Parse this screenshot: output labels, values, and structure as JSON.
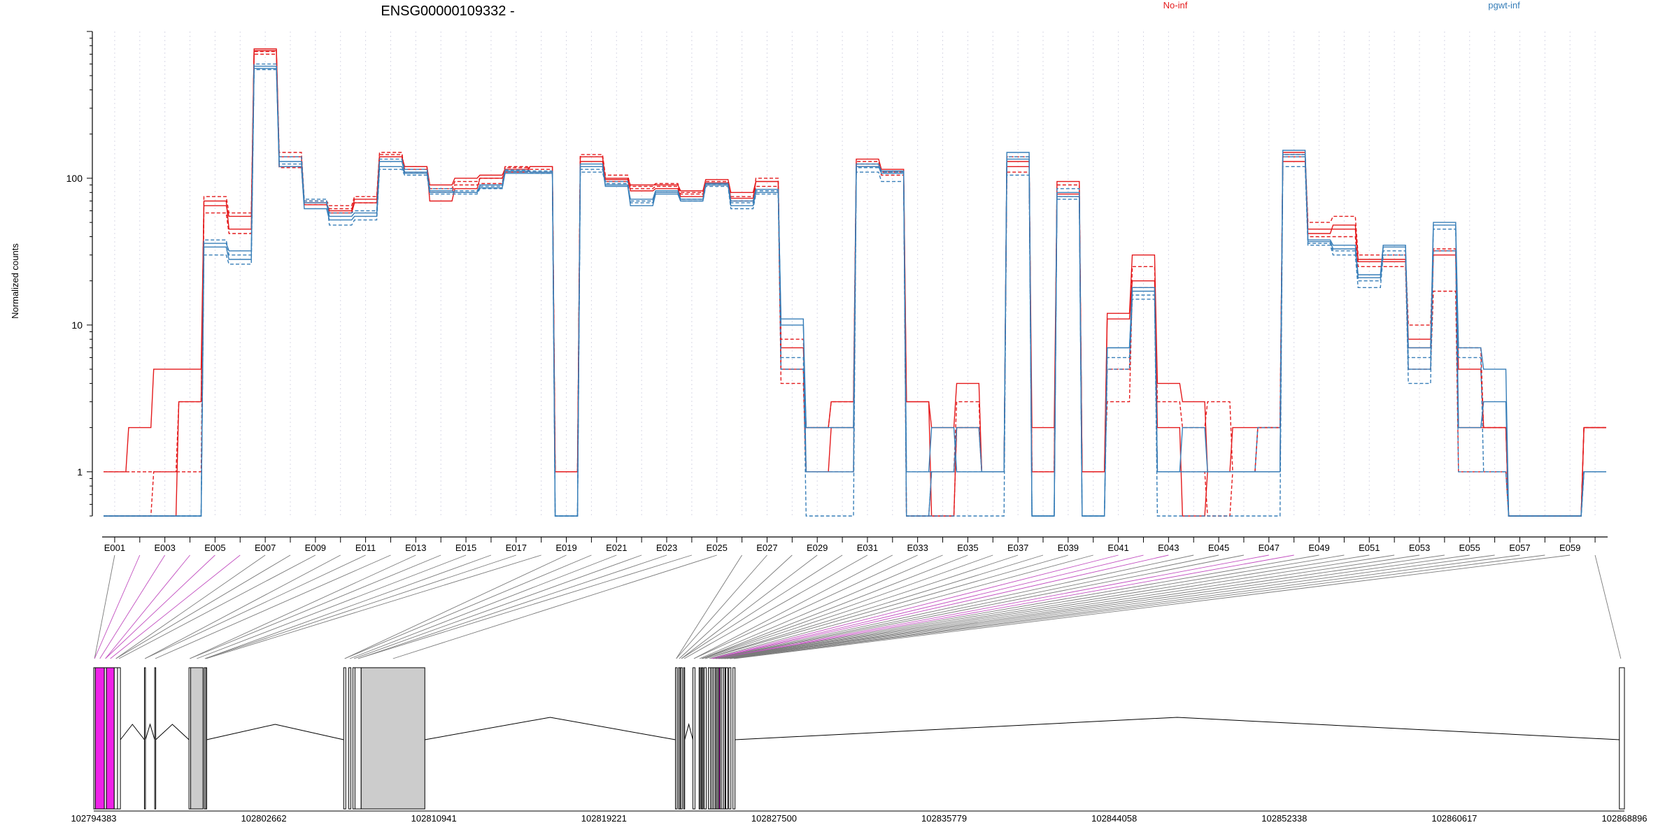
{
  "chart_data": {
    "type": "line",
    "title": "ENSG00000109332 -",
    "ylabel": "Normalized counts",
    "yscale": "log",
    "ylim": [
      0.5,
      1000
    ],
    "yticks": [
      1,
      10,
      100
    ],
    "ytick_labels": [
      "1",
      "10",
      "100"
    ],
    "categories": [
      "E001",
      "E002",
      "E003",
      "E004",
      "E005",
      "E006",
      "E007",
      "E008",
      "E009",
      "E010",
      "E011",
      "E012",
      "E013",
      "E014",
      "E015",
      "E016",
      "E017",
      "E018",
      "E019",
      "E020",
      "E021",
      "E022",
      "E023",
      "E024",
      "E025",
      "E026",
      "E027",
      "E028",
      "E029",
      "E030",
      "E031",
      "E032",
      "E033",
      "E034",
      "E035",
      "E036",
      "E037",
      "E038",
      "E039",
      "E040",
      "E041",
      "E042",
      "E043",
      "E044",
      "E045",
      "E046",
      "E047",
      "E048",
      "E049",
      "E050",
      "E051",
      "E052",
      "E053",
      "E054",
      "E055",
      "E056",
      "E057",
      "E058",
      "E059",
      "E060"
    ],
    "category_labels": [
      "E001",
      "",
      "E003",
      "",
      "E005",
      "",
      "E007",
      "",
      "E009",
      "",
      "E011",
      "",
      "E013",
      "",
      "E015",
      "",
      "E017",
      "",
      "E019",
      "",
      "E021",
      "",
      "E023",
      "",
      "E025",
      "",
      "E027",
      "",
      "E029",
      "",
      "E031",
      "",
      "E033",
      "",
      "E035",
      "",
      "E037",
      "",
      "E039",
      "",
      "E041",
      "",
      "E043",
      "",
      "E045",
      "",
      "E047",
      "",
      "E049",
      "",
      "E051",
      "",
      "E053",
      "",
      "E055",
      "",
      "E057",
      "",
      "E059",
      ""
    ],
    "legend": [
      {
        "name": "No-inf",
        "color": "#e41a1c"
      },
      {
        "name": "pgwt-inf",
        "color": "#377eb8"
      }
    ],
    "series": [
      {
        "group": "No-inf",
        "color": "#e41a1c",
        "values": [
          1,
          1,
          1,
          1,
          58,
          42,
          730,
          118,
          66,
          62,
          68,
          145,
          115,
          80,
          90,
          92,
          118,
          110,
          1,
          140,
          95,
          85,
          88,
          78,
          90,
          75,
          88,
          4,
          1,
          1,
          130,
          110,
          0.5,
          0.5,
          2,
          1,
          110,
          1,
          75,
          1,
          3,
          18,
          1,
          1,
          0.5,
          1,
          2,
          140,
          40,
          40,
          25,
          25,
          5,
          17,
          1,
          1,
          0.5,
          0.5,
          0.5,
          2
        ]
      },
      {
        "group": "No-inf",
        "color": "#e41a1c",
        "values": [
          1,
          2,
          5,
          5,
          65,
          55,
          760,
          140,
          68,
          60,
          72,
          140,
          120,
          90,
          100,
          105,
          115,
          120,
          1,
          130,
          100,
          90,
          90,
          82,
          98,
          80,
          95,
          7,
          2,
          3,
          135,
          115,
          3,
          2,
          4,
          1,
          130,
          1,
          95,
          1,
          12,
          30,
          4,
          3,
          1,
          1,
          1,
          150,
          45,
          45,
          28,
          28,
          8,
          32,
          5,
          2,
          0.5,
          0.5,
          0.5,
          2
        ]
      },
      {
        "group": "No-inf",
        "color": "#e41a1c",
        "values": [
          0.5,
          0.5,
          1,
          3,
          75,
          58,
          700,
          150,
          70,
          65,
          75,
          150,
          110,
          85,
          95,
          100,
          120,
          115,
          1,
          145,
          105,
          88,
          92,
          80,
          95,
          70,
          100,
          8,
          2,
          3,
          125,
          105,
          0.5,
          1,
          3,
          1,
          140,
          1,
          90,
          1,
          5,
          25,
          3,
          2,
          3,
          1,
          2,
          145,
          50,
          55,
          30,
          30,
          10,
          33,
          7,
          2,
          0.5,
          0.5,
          0.5,
          2
        ]
      },
      {
        "group": "No-inf",
        "color": "#e41a1c",
        "values": [
          0.5,
          0.5,
          0.5,
          3,
          70,
          45,
          740,
          120,
          66,
          58,
          68,
          140,
          120,
          70,
          85,
          100,
          110,
          120,
          1,
          140,
          98,
          82,
          85,
          75,
          93,
          73,
          95,
          5,
          1,
          2,
          120,
          112,
          3,
          0.5,
          2,
          1,
          120,
          2,
          78,
          1,
          11,
          20,
          2,
          0.5,
          1,
          2,
          2,
          130,
          42,
          48,
          27,
          27,
          7,
          30,
          2,
          2,
          0.5,
          0.5,
          0.5,
          2
        ]
      },
      {
        "group": "pgwt-inf",
        "color": "#377eb8",
        "values": [
          0.5,
          0.5,
          0.5,
          0.5,
          30,
          26,
          550,
          140,
          72,
          48,
          52,
          115,
          105,
          78,
          78,
          85,
          110,
          108,
          0.5,
          110,
          92,
          70,
          80,
          72,
          92,
          68,
          82,
          6,
          0.5,
          0.5,
          110,
          95,
          1,
          1,
          1,
          1,
          105,
          0.5,
          72,
          0.5,
          5,
          15,
          0.5,
          0.5,
          0.5,
          0.5,
          0.5,
          120,
          35,
          30,
          18,
          30,
          4,
          32,
          1,
          1,
          0.5,
          0.5,
          0.5,
          1
        ]
      },
      {
        "group": "pgwt-inf",
        "color": "#377eb8",
        "values": [
          0.5,
          0.5,
          0.5,
          0.5,
          36,
          32,
          580,
          130,
          68,
          55,
          58,
          130,
          110,
          82,
          80,
          90,
          112,
          110,
          0.5,
          125,
          90,
          65,
          78,
          70,
          90,
          65,
          80,
          11,
          1,
          1,
          125,
          112,
          0.5,
          1,
          2,
          1,
          150,
          0.5,
          80,
          0.5,
          7,
          18,
          1,
          2,
          1,
          1,
          1,
          155,
          38,
          35,
          22,
          35,
          7,
          50,
          2,
          3,
          0.5,
          0.5,
          0.5,
          1
        ]
      },
      {
        "group": "pgwt-inf",
        "color": "#377eb8",
        "values": [
          0.5,
          0.5,
          0.5,
          0.5,
          38,
          30,
          600,
          125,
          70,
          58,
          60,
          135,
          115,
          85,
          82,
          88,
          114,
          112,
          0.5,
          115,
          95,
          68,
          80,
          70,
          88,
          62,
          78,
          5,
          2,
          2,
          118,
          110,
          0.5,
          0.5,
          0.5,
          0.5,
          140,
          0.5,
          85,
          0.5,
          6,
          16,
          1,
          1,
          1,
          1,
          2,
          140,
          36,
          32,
          20,
          32,
          6,
          45,
          6,
          1,
          0.5,
          0.5,
          0.5,
          1
        ]
      },
      {
        "group": "pgwt-inf",
        "color": "#377eb8",
        "values": [
          0.5,
          0.5,
          0.5,
          0.5,
          34,
          28,
          560,
          120,
          62,
          52,
          55,
          120,
          108,
          80,
          80,
          86,
          108,
          108,
          0.5,
          120,
          88,
          72,
          82,
          72,
          92,
          70,
          84,
          10,
          2,
          2,
          120,
          108,
          1,
          2,
          1,
          1,
          135,
          0.5,
          75,
          0.5,
          7,
          17,
          1,
          1,
          1,
          1,
          1,
          145,
          37,
          33,
          21,
          34,
          5,
          48,
          7,
          5,
          0.5,
          0.5,
          0.5,
          1
        ]
      }
    ],
    "genomic_coordinates": [
      "102794383",
      "102802662",
      "102810941",
      "102819221",
      "102827500",
      "102835779",
      "102844058",
      "102852338",
      "102860617",
      "102868896"
    ],
    "highlighted_exon_color": "#ef22e8",
    "exon_fill_color": "#cccccc"
  }
}
